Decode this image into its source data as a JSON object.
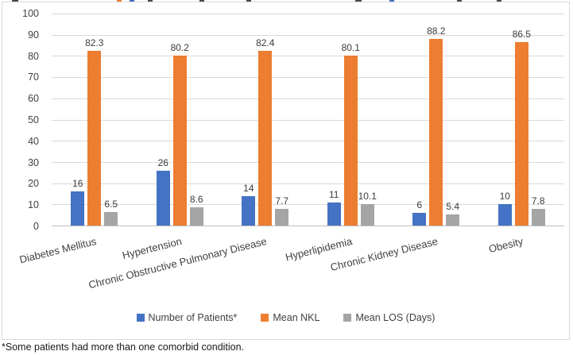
{
  "chart_data": {
    "type": "bar",
    "categories": [
      "Diabetes Mellitus",
      "Hypertension",
      "Chronic Obstructive Pulmonary Disease",
      "Hyperlipidemia",
      "Chronic Kidney Disease",
      "Obesity"
    ],
    "series": [
      {
        "name": "Number of Patients*",
        "color": "#4472C4",
        "values": [
          16,
          26,
          14,
          11,
          6,
          10
        ],
        "value_labels": [
          "16",
          "26",
          "14",
          "11",
          "6",
          "10"
        ]
      },
      {
        "name": "Mean NKL",
        "color": "#ED7D31",
        "values": [
          82.3,
          80.2,
          82.4,
          80.1,
          88.2,
          86.5
        ],
        "value_labels": [
          "82.3",
          "80.2",
          "82.4",
          "80.1",
          "88.2",
          "86.5"
        ]
      },
      {
        "name": "Mean LOS (Days)",
        "color": "#A5A5A5",
        "values": [
          6.5,
          8.6,
          7.7,
          10.1,
          5.4,
          7.8
        ],
        "value_labels": [
          "6.5",
          "8.6",
          "7.7",
          "10.1",
          "5.4",
          "7.8"
        ]
      }
    ],
    "ylim": [
      0,
      100
    ],
    "yticks": [
      0,
      10,
      20,
      30,
      40,
      50,
      60,
      70,
      80,
      90,
      100
    ],
    "grid": true,
    "legend_position": "bottom"
  },
  "footnote": "*Some patients had more than one comorbid condition.",
  "colors": {
    "grid": "#d9d9d9",
    "axis": "#bfbfbf",
    "text": "#404040",
    "frame_border": "#d9d9d9"
  }
}
